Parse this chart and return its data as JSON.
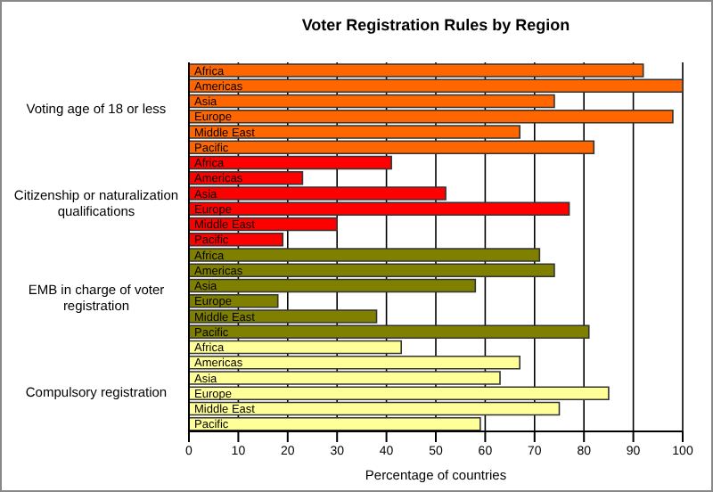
{
  "chart_data": {
    "type": "bar",
    "title": "Voter Registration Rules by Region",
    "xlabel": "Percentage of countries",
    "orientation": "horizontal",
    "stacked": true,
    "categories": [
      "Africa",
      "Americas",
      "Asia",
      "Europe",
      "Middle East",
      "Pacific",
      "Africa",
      "Americas",
      "Asia",
      "Europe",
      "Middle East",
      "Pacific",
      "Africa",
      "Americas",
      "Asia",
      "Europe",
      "Middle East",
      "Pacific",
      "Africa",
      "Americas",
      "Asia",
      "Europe",
      "Middle East",
      "Pacific"
    ],
    "series": [
      {
        "name": "Voting age of 18 or less",
        "color": "#ff6600",
        "values": [
          92,
          100,
          74,
          98,
          67,
          82,
          null,
          null,
          null,
          null,
          null,
          null,
          null,
          null,
          null,
          null,
          null,
          null,
          null,
          null,
          null,
          null,
          null,
          null
        ]
      },
      {
        "name": "Citizenship or naturalization qualifications",
        "color": "#ff0000",
        "values": [
          null,
          null,
          null,
          null,
          null,
          null,
          41,
          23,
          52,
          77,
          30,
          19,
          null,
          null,
          null,
          null,
          null,
          null,
          null,
          null,
          null,
          null,
          null,
          null
        ]
      },
      {
        "name": "EMB in charge of voter registration",
        "color": "#808000",
        "values": [
          null,
          null,
          null,
          null,
          null,
          null,
          null,
          null,
          null,
          null,
          null,
          null,
          71,
          74,
          58,
          18,
          38,
          81,
          null,
          null,
          null,
          null,
          null,
          null
        ]
      },
      {
        "name": "Compulsory registration",
        "color": "#ffff99",
        "values": [
          null,
          null,
          null,
          null,
          null,
          null,
          null,
          null,
          null,
          null,
          null,
          null,
          null,
          null,
          null,
          null,
          null,
          null,
          43,
          67,
          63,
          85,
          75,
          59
        ]
      }
    ],
    "xlim": [
      0,
      100
    ],
    "xticks": [
      0,
      10,
      20,
      30,
      40,
      50,
      60,
      70,
      80,
      90,
      100
    ],
    "grid": "x"
  }
}
